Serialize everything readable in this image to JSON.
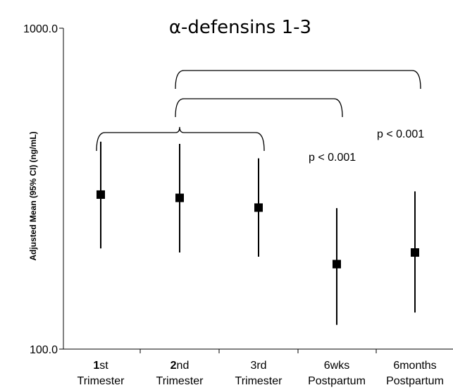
{
  "chart_data": {
    "type": "scatter",
    "title": "α-defensins 1-3",
    "ylabel": "Adjusted Mean (95% CI) (ng/mL)",
    "xlabel": "",
    "y_scale": "log",
    "ylim": [
      100,
      1000
    ],
    "y_ticks": [
      {
        "value": 100,
        "label": "100.0"
      },
      {
        "value": 1000,
        "label": "1000.0"
      }
    ],
    "categories": [
      {
        "bold": "1",
        "rest": "st",
        "line2": "Trimester"
      },
      {
        "bold": "2",
        "rest": "nd",
        "line2": "Trimester"
      },
      {
        "bold": "",
        "rest": "3rd",
        "line2": "Trimester"
      },
      {
        "bold": "",
        "rest": "6wks",
        "line2": "Postpartum"
      },
      {
        "bold": "",
        "rest": "6months",
        "line2": "Postpartum"
      }
    ],
    "points": [
      {
        "mean": 303,
        "lower": 206,
        "upper": 443
      },
      {
        "mean": 296,
        "lower": 200,
        "upper": 436
      },
      {
        "mean": 276,
        "lower": 194,
        "upper": 393
      },
      {
        "mean": 184,
        "lower": 119,
        "upper": 275
      },
      {
        "mean": 200,
        "lower": 130,
        "upper": 310
      }
    ],
    "marker": "square",
    "grid": false,
    "legend": "none",
    "annotations": [
      {
        "text": "p < 0.001",
        "type": "bracket-label"
      },
      {
        "text": "p < 0.001",
        "type": "bracket-label"
      }
    ],
    "brackets": [
      {
        "from": 0,
        "to": 2,
        "stem_at": 1
      },
      {
        "from": 1,
        "to": 3,
        "stem_at": null
      },
      {
        "from": 1,
        "to": 4,
        "stem_at": null
      }
    ]
  }
}
